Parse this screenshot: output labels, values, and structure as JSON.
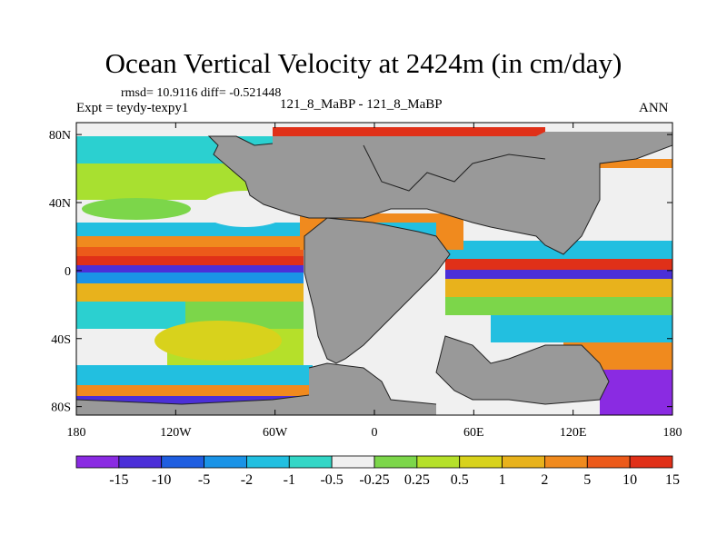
{
  "title": "Ocean Vertical Velocity at 2424m (in cm/day)",
  "stats": "rmsd= 10.9116 diff= -0.521448",
  "experiment": "Expt = teydy-texpy1",
  "case_label": "121_8_MaBP - 121_8_MaBP",
  "season": "ANN",
  "y_axis": {
    "ticks": [
      {
        "label": "80N",
        "lat": 80
      },
      {
        "label": "40N",
        "lat": 40
      },
      {
        "label": "0",
        "lat": 0
      },
      {
        "label": "40S",
        "lat": -40
      },
      {
        "label": "80S",
        "lat": -80
      }
    ],
    "range": [
      -85,
      87
    ]
  },
  "x_axis": {
    "ticks": [
      {
        "label": "180",
        "lon": -180
      },
      {
        "label": "120W",
        "lon": -120
      },
      {
        "label": "60W",
        "lon": -60
      },
      {
        "label": "0",
        "lon": 0
      },
      {
        "label": "60E",
        "lon": 60
      },
      {
        "label": "120E",
        "lon": 120
      },
      {
        "label": "180",
        "lon": 180
      }
    ],
    "range": [
      -180,
      180
    ]
  },
  "colorbar": {
    "labels": [
      "-15",
      "-10",
      "-5",
      "-2",
      "-1",
      "-0.5",
      "-0.25",
      "0.25",
      "0.5",
      "1",
      "2",
      "5",
      "10",
      "15"
    ],
    "colors": [
      "#8a2be2",
      "#4b2fd8",
      "#1f5ee0",
      "#1a93e6",
      "#22bfe0",
      "#33d6c6",
      "#f0f0f0",
      "#7cd64a",
      "#b5e02a",
      "#d8d21c",
      "#e8b21c",
      "#f08a1e",
      "#ec5a1a",
      "#e03018"
    ]
  },
  "colors": {
    "land": "#999999",
    "missing": "#f0f0f0"
  }
}
